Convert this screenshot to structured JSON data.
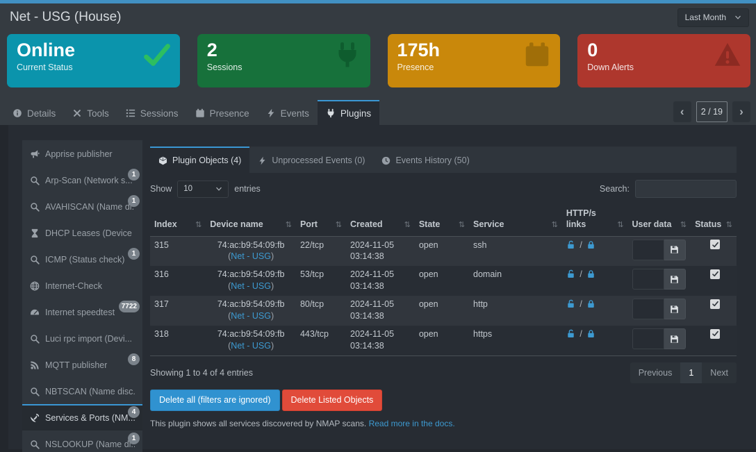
{
  "accent_blue": "#3a97d4",
  "header": {
    "title": "Net - USG (House)",
    "period_label": "Last Month"
  },
  "summary_cards": [
    {
      "value": "Online",
      "label": "Current Status",
      "color": "#0b94ac",
      "icon": "check",
      "icon_color": "#2dbe60"
    },
    {
      "value": "2",
      "label": "Sessions",
      "color": "#17713b",
      "icon": "plug",
      "icon_color": "#0e5c2e"
    },
    {
      "value": "175h",
      "label": "Presence",
      "color": "#c9880b",
      "icon": "calendar",
      "icon_color": "#a06e08"
    },
    {
      "value": "0",
      "label": "Down Alerts",
      "color": "#ae372d",
      "icon": "warning",
      "icon_color": "#8c2a22"
    }
  ],
  "main_tabs": {
    "items": [
      {
        "label": "Details",
        "icon": "info",
        "active": false
      },
      {
        "label": "Tools",
        "icon": "tools",
        "active": false
      },
      {
        "label": "Sessions",
        "icon": "listol",
        "active": false
      },
      {
        "label": "Presence",
        "icon": "calendar",
        "active": false
      },
      {
        "label": "Events",
        "icon": "bolt",
        "active": false
      },
      {
        "label": "Plugins",
        "icon": "plug",
        "active": true
      }
    ],
    "pager": {
      "prev": "‹",
      "position": "2 / 19",
      "next": "›"
    }
  },
  "sidebar": {
    "items": [
      {
        "label": "Apprise publisher",
        "icon": "megaphone",
        "badge": null,
        "active": false
      },
      {
        "label": "Arp-Scan (Network s...",
        "icon": "search",
        "badge": "1",
        "active": false
      },
      {
        "label": "AVAHISCAN (Name di...",
        "icon": "search",
        "badge": "1",
        "active": false
      },
      {
        "label": "DHCP Leases (Device ...",
        "icon": "hourglass",
        "badge": null,
        "active": false
      },
      {
        "label": "ICMP (Status check)",
        "icon": "search",
        "badge": "1",
        "active": false
      },
      {
        "label": "Internet-Check",
        "icon": "globe",
        "badge": null,
        "active": false
      },
      {
        "label": "Internet speedtest",
        "icon": "gauge",
        "badge": "7722",
        "active": false
      },
      {
        "label": "Luci rpc import (Devi...",
        "icon": "search",
        "badge": null,
        "active": false
      },
      {
        "label": "MQTT publisher",
        "icon": "rss",
        "badge": "8",
        "active": false
      },
      {
        "label": "NBTSCAN (Name disc...",
        "icon": "search",
        "badge": null,
        "active": false
      },
      {
        "label": "Services & Ports (NM...",
        "icon": "satellite",
        "badge": "4",
        "active": true
      },
      {
        "label": "NSLOOKUP (Name di...",
        "icon": "search",
        "badge": "1",
        "active": false
      }
    ]
  },
  "plugin_panel": {
    "tabs": [
      {
        "label": "Plugin Objects (4)",
        "icon": "cube",
        "active": true
      },
      {
        "label": "Unprocessed Events (0)",
        "icon": "bolt",
        "active": false
      },
      {
        "label": "Events History (50)",
        "icon": "clock",
        "active": false
      }
    ],
    "show_entries": {
      "prefix": "Show",
      "value": "10",
      "suffix": "entries"
    },
    "search_label": "Search:",
    "search_value": "",
    "table": {
      "sort_glyph": "⇅",
      "paren_open": "(",
      "paren_close": ")",
      "links_sep": "/",
      "columns": [
        "Index",
        "Device name",
        "Port",
        "Created",
        "State",
        "Service",
        "HTTP/s links",
        "User data",
        "Status"
      ],
      "rows": [
        {
          "index": "315",
          "device": "74:ac:b9:54:09:fb",
          "device_link": "Net - USG",
          "port": "22/tcp",
          "created_date": "2024-11-05",
          "created_time": "03:14:38",
          "state": "open",
          "service": "ssh",
          "user_data": "",
          "status_checked": true
        },
        {
          "index": "316",
          "device": "74:ac:b9:54:09:fb",
          "device_link": "Net - USG",
          "port": "53/tcp",
          "created_date": "2024-11-05",
          "created_time": "03:14:38",
          "state": "open",
          "service": "domain",
          "user_data": "",
          "status_checked": true
        },
        {
          "index": "317",
          "device": "74:ac:b9:54:09:fb",
          "device_link": "Net - USG",
          "port": "80/tcp",
          "created_date": "2024-11-05",
          "created_time": "03:14:38",
          "state": "open",
          "service": "http",
          "user_data": "",
          "status_checked": true
        },
        {
          "index": "318",
          "device": "74:ac:b9:54:09:fb",
          "device_link": "Net - USG",
          "port": "443/tcp",
          "created_date": "2024-11-05",
          "created_time": "03:14:38",
          "state": "open",
          "service": "https",
          "user_data": "",
          "status_checked": true
        }
      ]
    },
    "summary": "Showing 1 to 4 of 4 entries",
    "pagination": {
      "previous": "Previous",
      "page": "1",
      "next": "Next"
    },
    "buttons": {
      "delete_all": "Delete all (filters are ignored)",
      "delete_listed": "Delete Listed Objects"
    },
    "description": "This plugin shows all services discovered by NMAP scans.",
    "description_link": "Read more in the docs."
  }
}
